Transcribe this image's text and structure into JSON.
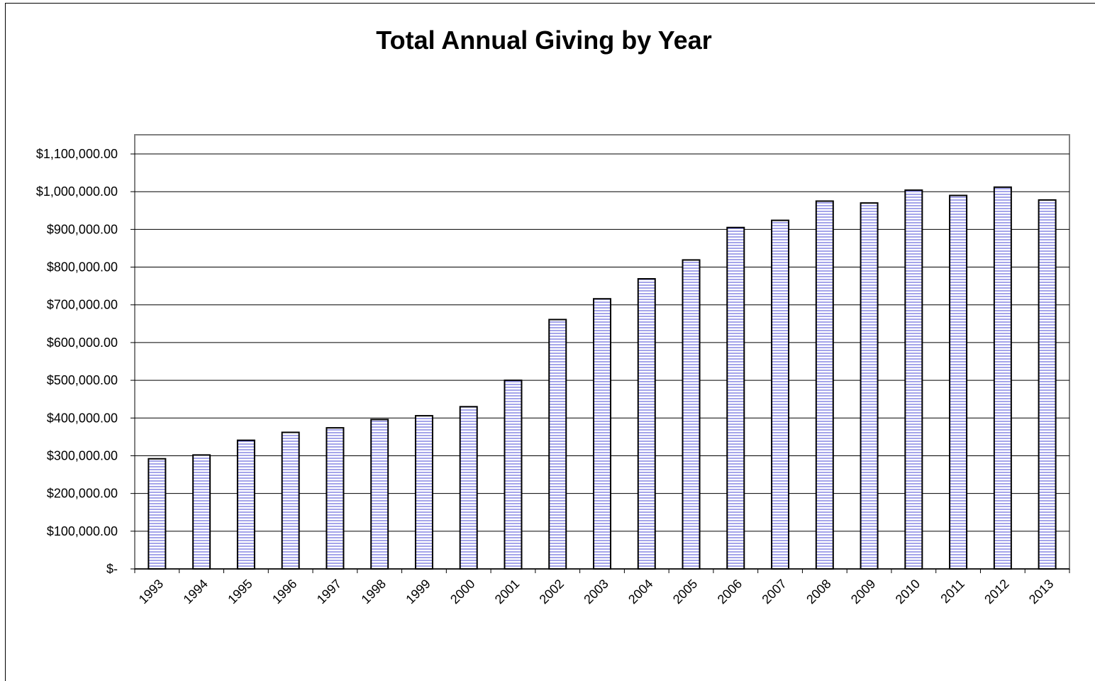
{
  "chart_data": {
    "type": "bar",
    "title": "Total Annual Giving by Year",
    "xlabel": "",
    "ylabel": "",
    "ylim": [
      0,
      1100000
    ],
    "grid": "horizontal",
    "legend": "none",
    "yticks": [
      {
        "value": 0,
        "label": "$-"
      },
      {
        "value": 100000,
        "label": "$100,000.00"
      },
      {
        "value": 200000,
        "label": "$200,000.00"
      },
      {
        "value": 300000,
        "label": "$300,000.00"
      },
      {
        "value": 400000,
        "label": "$400,000.00"
      },
      {
        "value": 500000,
        "label": "$500,000.00"
      },
      {
        "value": 600000,
        "label": "$600,000.00"
      },
      {
        "value": 700000,
        "label": "$700,000.00"
      },
      {
        "value": 800000,
        "label": "$800,000.00"
      },
      {
        "value": 900000,
        "label": "$900,000.00"
      },
      {
        "value": 1000000,
        "label": "$1,000,000.00"
      },
      {
        "value": 1100000,
        "label": "$1,100,000.00"
      }
    ],
    "categories": [
      "1993",
      "1994",
      "1995",
      "1996",
      "1997",
      "1998",
      "1999",
      "2000",
      "2001",
      "2002",
      "2003",
      "2004",
      "2005",
      "2006",
      "2007",
      "2008",
      "2009",
      "2010",
      "2011",
      "2012",
      "2013"
    ],
    "values": [
      292000,
      302000,
      341000,
      362000,
      374000,
      396000,
      406000,
      430000,
      500000,
      661000,
      716000,
      769000,
      819000,
      905000,
      924000,
      975000,
      970000,
      1004000,
      990000,
      1012000,
      978000
    ],
    "colors": {
      "bar_fill": "#ffffff",
      "bar_hatch": "#4b4bd6",
      "bar_edge": "#000000",
      "grid": "#000000"
    }
  }
}
